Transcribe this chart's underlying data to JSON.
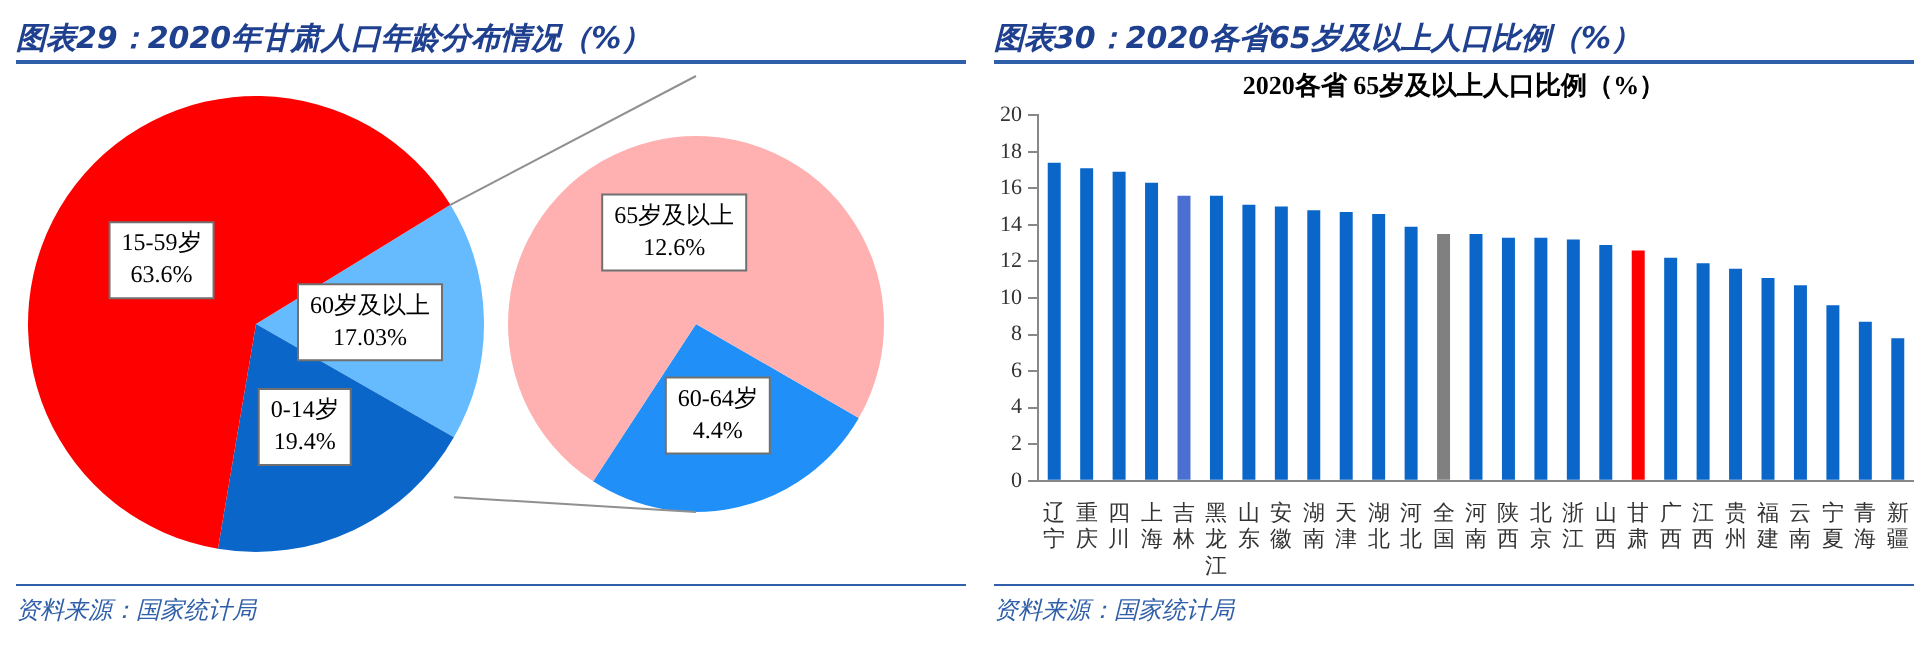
{
  "chart_data": [
    {
      "type": "pie",
      "title": "图表29：2020年甘肃人口年龄分布情况（%）",
      "categories": [
        "60岁及以上",
        "0-14岁",
        "15-59岁"
      ],
      "values": [
        17.03,
        19.4,
        63.6
      ],
      "colors": [
        "#66bbff",
        "#0a66c8",
        "#ff0000"
      ],
      "value_labels": [
        "17.03%",
        "19.4%",
        "63.6%"
      ],
      "annotations": [
        "资料来源：国家统计局"
      ]
    },
    {
      "type": "pie",
      "categories": [
        "60-64岁",
        "65岁及以上"
      ],
      "values": [
        4.4,
        12.6
      ],
      "colors": [
        "#2090f8",
        "#ffb0b0"
      ],
      "value_labels": [
        "4.4%",
        "12.6%"
      ]
    },
    {
      "type": "bar",
      "title": "图表30：2020各省65岁及以上人口比例（%）",
      "subtitle": "2020各省 65岁及以上人口比例（%）",
      "categories": [
        "辽宁",
        "重庆",
        "四川",
        "上海",
        "吉林",
        "黑龙江",
        "山东",
        "安徽",
        "湖南",
        "天津",
        "湖北",
        "河北",
        "全国",
        "河南",
        "陕西",
        "北京",
        "浙江",
        "山西",
        "甘肃",
        "广西",
        "江西",
        "贵州",
        "福建",
        "云南",
        "宁夏",
        "青海",
        "新疆"
      ],
      "values": [
        17.4,
        17.1,
        16.9,
        16.3,
        15.6,
        15.6,
        15.1,
        15.0,
        14.8,
        14.7,
        14.6,
        13.9,
        13.5,
        13.5,
        13.3,
        13.3,
        13.2,
        12.9,
        12.6,
        12.2,
        11.9,
        11.6,
        11.1,
        10.7,
        9.6,
        8.7,
        7.8
      ],
      "colors": [
        "#0a66c8",
        "#0a66c8",
        "#0a66c8",
        "#0a66c8",
        "#4a6fd0",
        "#0a66c8",
        "#0a66c8",
        "#0a66c8",
        "#0a66c8",
        "#0a66c8",
        "#0a66c8",
        "#0a66c8",
        "#808080",
        "#0a66c8",
        "#0a66c8",
        "#0a66c8",
        "#0a66c8",
        "#0a66c8",
        "#ff0000",
        "#0a66c8",
        "#0a66c8",
        "#0a66c8",
        "#0a66c8",
        "#0a66c8",
        "#0a66c8",
        "#0a66c8",
        "#0a66c8"
      ],
      "ylim": [
        0,
        20
      ],
      "yticks": [
        0,
        2,
        4,
        6,
        8,
        10,
        12,
        14,
        16,
        18,
        20
      ],
      "grid": false,
      "annotations": [
        "资料来源：国家统计局"
      ]
    }
  ]
}
